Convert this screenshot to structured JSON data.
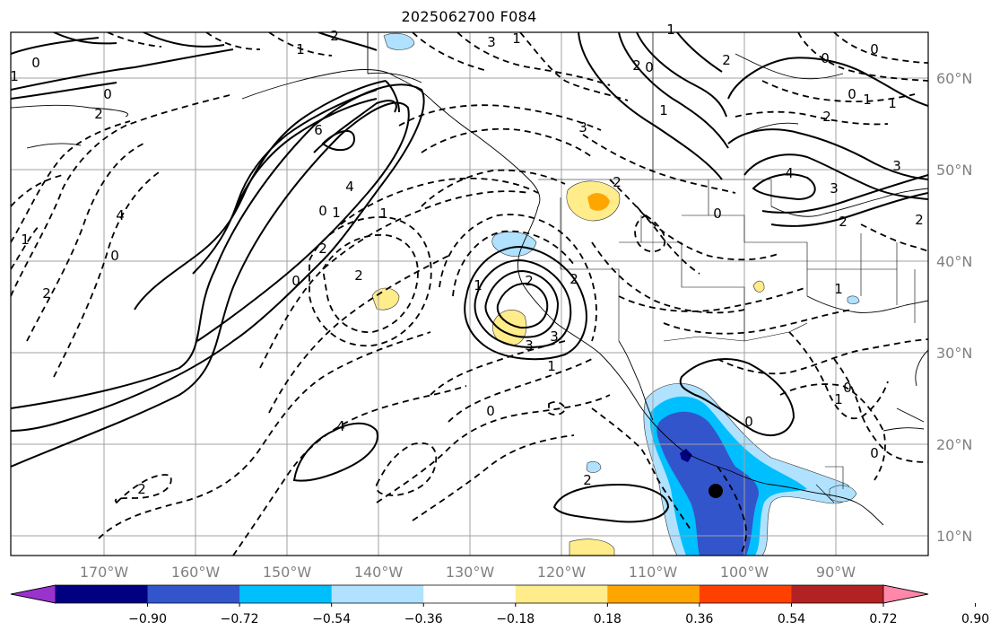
{
  "title": "2025062700 F084",
  "latitudes": [
    "60°N",
    "50°N",
    "40°N",
    "30°N",
    "20°N",
    "10°N"
  ],
  "longitudes": [
    "170°W",
    "160°W",
    "150°W",
    "140°W",
    "130°W",
    "120°W",
    "110°W",
    "100°W",
    "90°W"
  ],
  "colorbar": {
    "labels": [
      "−0.90",
      "−0.72",
      "−0.54",
      "−0.36",
      "−0.18",
      "0.18",
      "0.36",
      "0.54",
      "0.72",
      "0.90"
    ],
    "colors": [
      "#9a32cd",
      "#000080",
      "#3355cc",
      "#00bfff",
      "#b0e2ff",
      "#ffffff",
      "#ffec8b",
      "#ffa500",
      "#ff4000",
      "#b22222",
      "#ff88aa"
    ]
  },
  "contour_labels": [
    "0",
    "2",
    "1",
    "2",
    "1",
    "3",
    "4",
    "0",
    "1",
    "6",
    "4",
    "3",
    "2",
    "3",
    "2",
    "1",
    "3",
    "2",
    "0",
    "2",
    "3",
    "3",
    "2",
    "1",
    "0",
    "1",
    "2",
    "0",
    "2",
    "1",
    "4",
    "0",
    "2",
    "1",
    "4",
    "2",
    "2",
    "0",
    "1",
    "0",
    "0",
    "1",
    "0",
    "1",
    "2",
    "0",
    "0",
    "0",
    "1",
    "2",
    "1",
    "0",
    "2",
    "1"
  ]
}
